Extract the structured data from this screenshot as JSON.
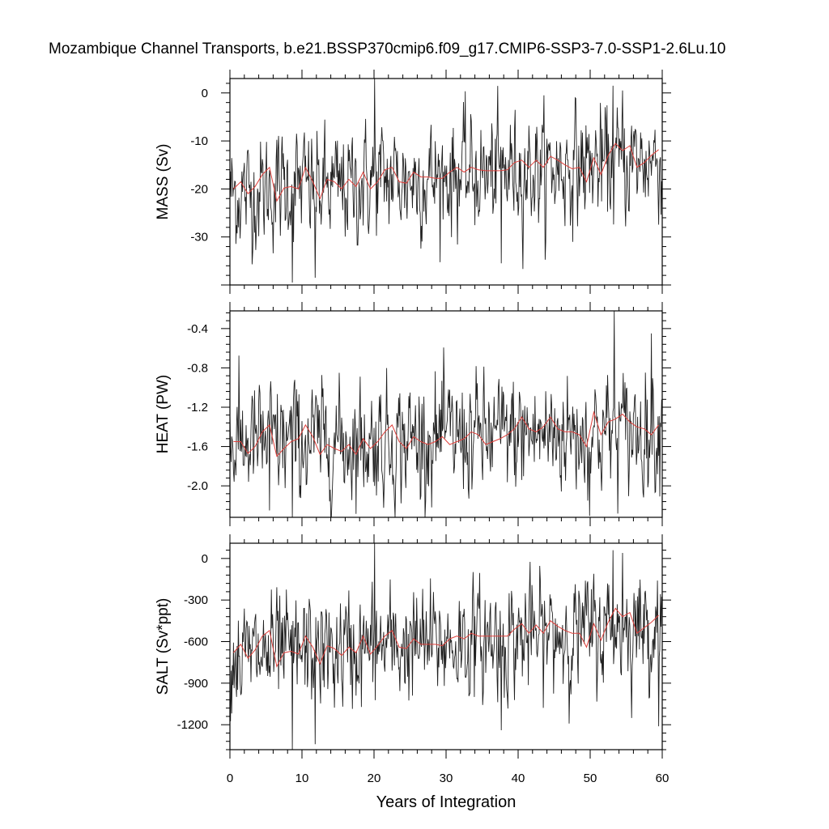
{
  "title": "Mozambique Channel Transports, b.e21.BSSP370cmip6.f09_g17.CMIP6-SSP3-7.0-SSP1-2.6Lu.10",
  "chart_data": [
    {
      "type": "line",
      "ylabel": "MASS (Sv)",
      "xlabel": "",
      "xlim": [
        0,
        60
      ],
      "ylim": [
        -40,
        3
      ],
      "xticks": [
        0,
        10,
        20,
        30,
        40,
        50,
        60
      ],
      "yticks": [
        0,
        -10,
        -20,
        -30
      ],
      "ytick_labels": [
        "0",
        "-10",
        "-20",
        "-30"
      ],
      "series": [
        {
          "color": "#202020",
          "resolution": "monthly",
          "x_start": 0,
          "x_step": 0.08333,
          "mean": [
            -21,
            -21,
            -20,
            -19,
            -20,
            -20,
            -19,
            -18,
            -18,
            -18,
            -17,
            -17,
            -17,
            -16,
            -16,
            -16,
            -15,
            -15,
            -15,
            -14,
            -14
          ],
          "amplitude": 5.5,
          "extremes": [
            [
              8.7,
              -39.5
            ],
            [
              11.8,
              -38.5
            ],
            [
              20.1,
              3.0
            ],
            [
              37.7,
              -35.5
            ],
            [
              53.2,
              1.5
            ],
            [
              54.5,
              0.5
            ]
          ]
        },
        {
          "color": "#e0403c",
          "resolution": "annual",
          "x": [
            0.5,
            1.5,
            2.5,
            3.5,
            4.5,
            5.5,
            6.5,
            7.5,
            8.5,
            9.5,
            10.5,
            11.5,
            12.5,
            13.5,
            14.5,
            15.5,
            16.5,
            17.5,
            18.5,
            19.5,
            20.5,
            21.5,
            22.5,
            23.5,
            24.5,
            25.5,
            26.5,
            27.5,
            28.5,
            29.5,
            30.5,
            31.5,
            32.5,
            33.5,
            34.5,
            35.5,
            36.5,
            37.5,
            38.5,
            39.5,
            40.5,
            41.5,
            42.5,
            43.5,
            44.5,
            45.5,
            46.5,
            47.5,
            48.5,
            49.5,
            50.5,
            51.5,
            52.5,
            53.5,
            54.5,
            55.5,
            56.5,
            57.5,
            58.5,
            59.5
          ],
          "y": [
            -20.0,
            -18.5,
            -21.0,
            -19.5,
            -17.0,
            -15.5,
            -22.5,
            -19.8,
            -19.5,
            -20.0,
            -15.5,
            -18.5,
            -22.0,
            -18.0,
            -18.5,
            -20.0,
            -18.0,
            -19.5,
            -16.5,
            -20.0,
            -18.5,
            -16.0,
            -15.5,
            -18.5,
            -18.8,
            -16.5,
            -17.5,
            -17.5,
            -17.8,
            -17.8,
            -16.5,
            -15.5,
            -16.5,
            -15.5,
            -16.0,
            -16.2,
            -16.2,
            -16.2,
            -16.0,
            -14.5,
            -14.0,
            -15.5,
            -14.0,
            -15.5,
            -13.2,
            -14.0,
            -15.0,
            -15.8,
            -15.5,
            -18.5,
            -13.5,
            -17.0,
            -13.0,
            -10.5,
            -12.0,
            -11.0,
            -15.5,
            -14.5,
            -13.0,
            -11.8
          ]
        }
      ]
    },
    {
      "type": "line",
      "ylabel": "HEAT (PW)",
      "xlabel": "",
      "xlim": [
        0,
        60
      ],
      "ylim": [
        -2.32,
        -0.22
      ],
      "xticks": [
        0,
        10,
        20,
        30,
        40,
        50,
        60
      ],
      "yticks": [
        -0.4,
        -0.8,
        -1.2,
        -1.6,
        -2.0
      ],
      "ytick_labels": [
        "-0.4",
        "-0.8",
        "-1.2",
        "-1.6",
        "-2.0"
      ],
      "series": [
        {
          "color": "#202020",
          "resolution": "monthly",
          "x_start": 0,
          "x_step": 0.08333,
          "mean": [
            -1.58,
            -1.56,
            -1.55,
            -1.54,
            -1.55,
            -1.55,
            -1.54,
            -1.54,
            -1.53,
            -1.52,
            -1.51,
            -1.5,
            -1.5,
            -1.49,
            -1.48,
            -1.47,
            -1.46,
            -1.45,
            -1.44,
            -1.43,
            -1.42
          ],
          "amplitude": 0.28,
          "extremes": [
            [
              8.7,
              -2.32
            ],
            [
              5.5,
              -2.25
            ],
            [
              53.3,
              -0.22
            ],
            [
              49.7,
              -2.15
            ],
            [
              58.5,
              -0.45
            ]
          ]
        },
        {
          "color": "#e0403c",
          "resolution": "annual",
          "x": [
            0.5,
            1.5,
            2.5,
            3.5,
            4.5,
            5.5,
            6.5,
            7.5,
            8.5,
            9.5,
            10.5,
            11.5,
            12.5,
            13.5,
            14.5,
            15.5,
            16.5,
            17.5,
            18.5,
            19.5,
            20.5,
            21.5,
            22.5,
            23.5,
            24.5,
            25.5,
            26.5,
            27.5,
            28.5,
            29.5,
            30.5,
            31.5,
            32.5,
            33.5,
            34.5,
            35.5,
            36.5,
            37.5,
            38.5,
            39.5,
            40.5,
            41.5,
            42.5,
            43.5,
            44.5,
            45.5,
            46.5,
            47.5,
            48.5,
            49.5,
            50.5,
            51.5,
            52.5,
            53.5,
            54.5,
            55.5,
            56.5,
            57.5,
            58.5,
            59.5
          ],
          "y": [
            -1.55,
            -1.55,
            -1.67,
            -1.6,
            -1.45,
            -1.38,
            -1.7,
            -1.62,
            -1.55,
            -1.52,
            -1.38,
            -1.5,
            -1.68,
            -1.58,
            -1.62,
            -1.65,
            -1.58,
            -1.68,
            -1.52,
            -1.62,
            -1.55,
            -1.45,
            -1.38,
            -1.55,
            -1.62,
            -1.5,
            -1.55,
            -1.58,
            -1.55,
            -1.5,
            -1.58,
            -1.55,
            -1.52,
            -1.45,
            -1.48,
            -1.58,
            -1.55,
            -1.52,
            -1.48,
            -1.42,
            -1.3,
            -1.42,
            -1.45,
            -1.4,
            -1.3,
            -1.42,
            -1.45,
            -1.45,
            -1.48,
            -1.6,
            -1.25,
            -1.48,
            -1.35,
            -1.32,
            -1.27,
            -1.35,
            -1.4,
            -1.42,
            -1.48,
            -1.38
          ]
        }
      ]
    },
    {
      "type": "line",
      "ylabel": "SALT (Sv*ppt)",
      "xlabel": "Years of Integration",
      "xlim": [
        0,
        60
      ],
      "ylim": [
        -1380,
        110
      ],
      "xticks": [
        0,
        10,
        20,
        30,
        40,
        50,
        60
      ],
      "xtick_labels": [
        "0",
        "10",
        "20",
        "30",
        "40",
        "50",
        "60"
      ],
      "yticks": [
        0,
        -300,
        -600,
        -900,
        -1200
      ],
      "ytick_labels": [
        "0",
        "-300",
        "-600",
        "-900",
        "-1200"
      ],
      "series": [
        {
          "color": "#202020",
          "resolution": "monthly",
          "x_start": 0,
          "x_step": 0.08333,
          "mean": [
            -720,
            -710,
            -690,
            -670,
            -680,
            -680,
            -660,
            -640,
            -630,
            -620,
            -610,
            -600,
            -590,
            -570,
            -560,
            -550,
            -530,
            -520,
            -510,
            -490,
            -480
          ],
          "amplitude": 190,
          "extremes": [
            [
              8.7,
              -1380
            ],
            [
              11.8,
              -1340
            ],
            [
              20.1,
              110
            ],
            [
              37.7,
              -1240
            ],
            [
              53.2,
              60
            ],
            [
              54.5,
              40
            ]
          ]
        },
        {
          "color": "#e0403c",
          "resolution": "annual",
          "x": [
            0.5,
            1.5,
            2.5,
            3.5,
            4.5,
            5.5,
            6.5,
            7.5,
            8.5,
            9.5,
            10.5,
            11.5,
            12.5,
            13.5,
            14.5,
            15.5,
            16.5,
            17.5,
            18.5,
            19.5,
            20.5,
            21.5,
            22.5,
            23.5,
            24.5,
            25.5,
            26.5,
            27.5,
            28.5,
            29.5,
            30.5,
            31.5,
            32.5,
            33.5,
            34.5,
            35.5,
            36.5,
            37.5,
            38.5,
            39.5,
            40.5,
            41.5,
            42.5,
            43.5,
            44.5,
            45.5,
            46.5,
            47.5,
            48.5,
            49.5,
            50.5,
            51.5,
            52.5,
            53.5,
            54.5,
            55.5,
            56.5,
            57.5,
            58.5,
            59.5
          ],
          "y": [
            -680,
            -620,
            -720,
            -660,
            -560,
            -520,
            -780,
            -680,
            -670,
            -690,
            -560,
            -640,
            -760,
            -630,
            -650,
            -700,
            -640,
            -680,
            -560,
            -690,
            -630,
            -560,
            -520,
            -640,
            -650,
            -580,
            -620,
            -620,
            -620,
            -630,
            -580,
            -560,
            -580,
            -540,
            -560,
            -560,
            -560,
            -560,
            -560,
            -510,
            -470,
            -540,
            -480,
            -540,
            -450,
            -490,
            -520,
            -540,
            -540,
            -640,
            -470,
            -590,
            -460,
            -360,
            -420,
            -390,
            -540,
            -500,
            -460,
            -410
          ]
        }
      ]
    }
  ]
}
